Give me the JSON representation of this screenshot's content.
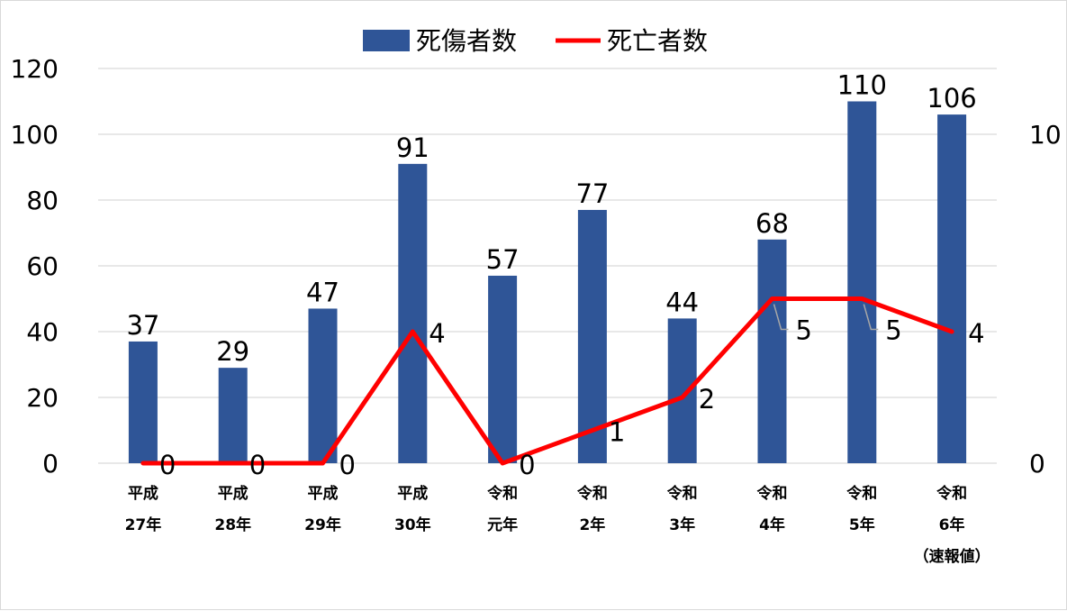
{
  "chart_data": {
    "type": "bar",
    "categories": [
      [
        "平成",
        "27年"
      ],
      [
        "平成",
        "28年"
      ],
      [
        "平成",
        "29年"
      ],
      [
        "平成",
        "30年"
      ],
      [
        "令和",
        "元年"
      ],
      [
        "令和",
        "2年"
      ],
      [
        "令和",
        "3年"
      ],
      [
        "令和",
        "4年"
      ],
      [
        "令和",
        "5年"
      ],
      [
        "令和",
        "6年",
        "（速報値）"
      ]
    ],
    "series": [
      {
        "name": "死傷者数",
        "type": "bar",
        "axis": "left",
        "color": "#2f5597",
        "values": [
          37,
          29,
          47,
          91,
          57,
          77,
          44,
          68,
          110,
          106
        ]
      },
      {
        "name": "死亡者数",
        "type": "line",
        "axis": "right",
        "color": "#ff0000",
        "values": [
          0,
          0,
          0,
          4,
          0,
          1,
          2,
          5,
          5,
          4
        ]
      }
    ],
    "y_left": {
      "ticks": [
        "0",
        "20",
        "40",
        "60",
        "80",
        "100",
        "120"
      ],
      "ylim": [
        0,
        120
      ]
    },
    "y_right": {
      "ticks": [
        "0",
        "10"
      ],
      "ylim": [
        0,
        12
      ]
    },
    "grid": true,
    "legend": "top-center",
    "title": "",
    "xlabel": "",
    "ylabel": ""
  }
}
